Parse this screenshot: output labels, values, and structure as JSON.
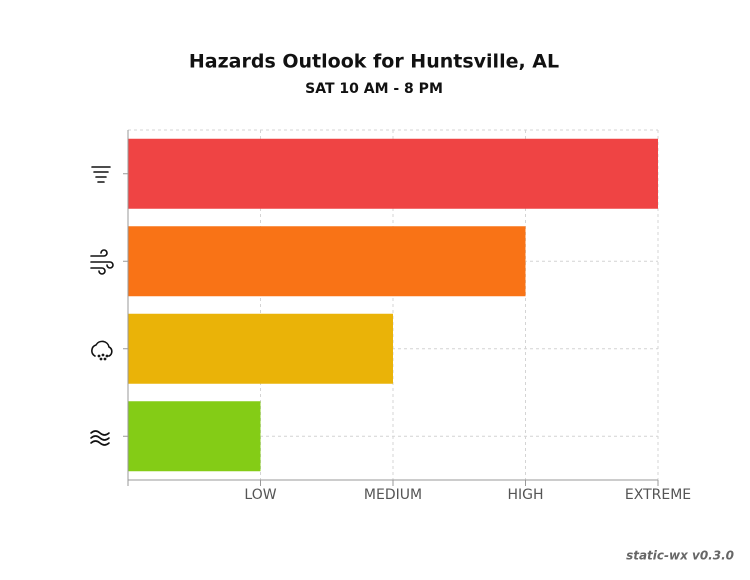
{
  "chart_data": {
    "type": "hbar",
    "title": "Hazards Outlook for Huntsville, AL",
    "subtitle": "SAT 10 AM - 8 PM",
    "categories": [
      null,
      null,
      null,
      null
    ],
    "values": [
      4,
      3,
      2,
      1
    ],
    "colors": [
      "#ef4444",
      "#f97316",
      "#eab308",
      "#84cc16"
    ],
    "xlim": [
      0,
      4
    ],
    "xticks": [
      {
        "value": 1,
        "label": "LOW"
      },
      {
        "value": 2,
        "label": "MEDIUM"
      },
      {
        "value": 3,
        "label": "HIGH"
      },
      {
        "value": 4,
        "label": "EXTREME"
      }
    ],
    "grid": true
  },
  "footer": "static-wx v0.3.0"
}
